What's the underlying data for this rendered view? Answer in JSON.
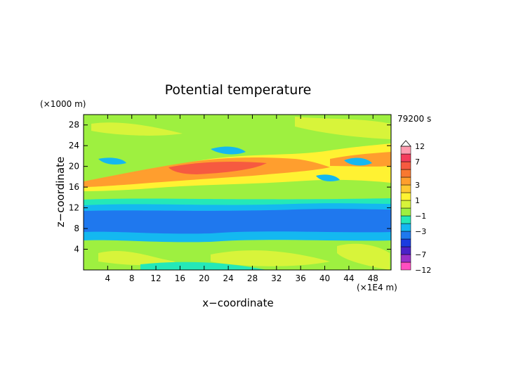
{
  "chart_data": {
    "type": "heatmap",
    "title": "Potential temperature",
    "xlabel": "x−coordinate",
    "ylabel": "z−coordinate",
    "x_unit": "(×1E4 m)",
    "y_unit": "(×1000 m)",
    "time_label": "79200 s",
    "xlim": [
      0,
      51
    ],
    "ylim": [
      0,
      30
    ],
    "x_ticks": [
      "4",
      "8",
      "12",
      "16",
      "20",
      "24",
      "28",
      "32",
      "36",
      "40",
      "44",
      "48"
    ],
    "y_ticks": [
      "4",
      "8",
      "12",
      "16",
      "20",
      "24",
      "28"
    ],
    "x_tick_values": [
      4,
      8,
      12,
      16,
      20,
      24,
      28,
      32,
      36,
      40,
      44,
      48
    ],
    "y_tick_values": [
      4,
      8,
      12,
      16,
      20,
      24,
      28
    ],
    "colorbar": {
      "levels": [
        -12,
        -9,
        -7,
        -5,
        -4,
        -3,
        -2,
        -1,
        0,
        1,
        2,
        3,
        4,
        5,
        7,
        9,
        12
      ],
      "labels": [
        "12",
        "7",
        "3",
        "1",
        "−1",
        "−3",
        "−7",
        "−12"
      ],
      "label_values": [
        12,
        7,
        3,
        1,
        -1,
        -3,
        -7,
        -12
      ],
      "colors": [
        "#ff4ec0",
        "#9a30c8",
        "#4a22c8",
        "#1a3ce0",
        "#1f78ee",
        "#14b8f0",
        "#24e8b8",
        "#9ef040",
        "#d8f43a",
        "#fff232",
        "#ffc832",
        "#ff9e2e",
        "#f87830",
        "#f65a40",
        "#f43c5c",
        "#ff9cb0"
      ],
      "overflow_high_color": "#ffffff"
    }
  }
}
